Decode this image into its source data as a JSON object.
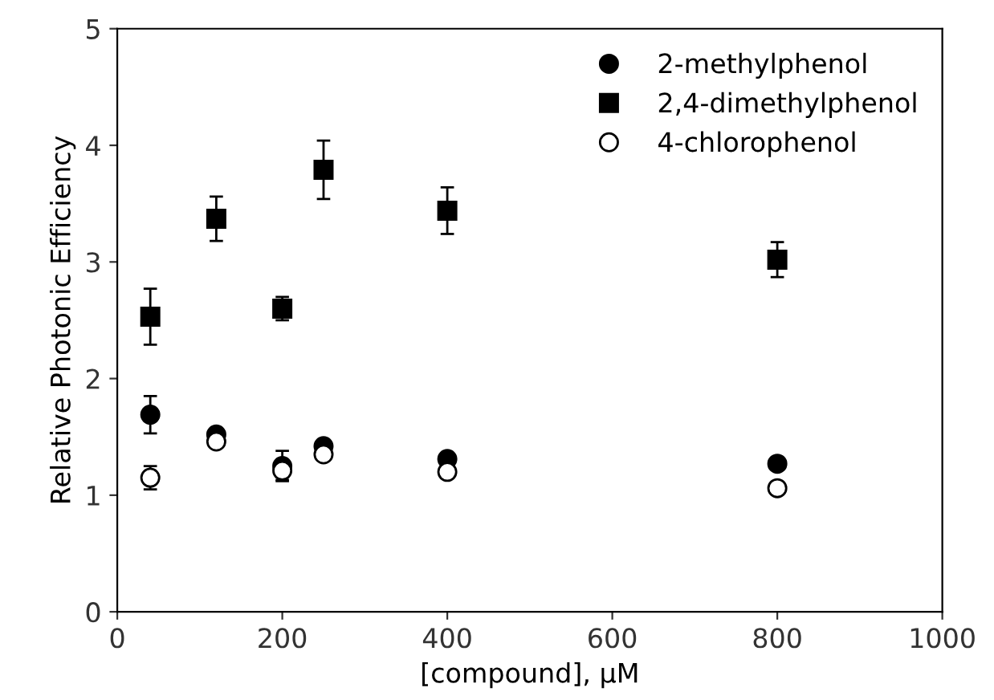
{
  "chart_data": {
    "type": "scatter",
    "xlabel": "[compound], µM",
    "ylabel": "Relative Photonic Efficiency",
    "xlim": [
      0,
      1000
    ],
    "xticks": [
      0,
      200,
      400,
      600,
      800,
      1000
    ],
    "ylim": [
      0,
      5
    ],
    "yticks": [
      0,
      1,
      2,
      3,
      4,
      5
    ],
    "legend": "top right",
    "grid": false,
    "x": [
      40,
      120,
      200,
      250,
      400,
      800
    ],
    "series": [
      {
        "name": "2-methylphenol",
        "color": "#000000",
        "marker": "circle",
        "values": [
          1.69,
          1.52,
          1.25,
          1.42,
          1.31,
          1.27
        ],
        "errors": [
          0.16,
          null,
          0.13,
          null,
          null,
          null
        ]
      },
      {
        "name": "2,4-dimethylphenol",
        "color": "#000000",
        "marker": "square",
        "values": [
          2.53,
          3.37,
          2.6,
          3.79,
          3.44,
          3.02
        ],
        "errors": [
          0.24,
          0.19,
          0.1,
          0.25,
          0.2,
          0.15
        ]
      },
      {
        "name": "4-chlorophenol",
        "color": "#ffffff",
        "marker": "circle",
        "values": [
          1.15,
          1.46,
          1.21,
          1.35,
          1.2,
          1.06
        ],
        "errors": [
          0.1,
          null,
          0.08,
          null,
          null,
          null
        ]
      }
    ]
  }
}
